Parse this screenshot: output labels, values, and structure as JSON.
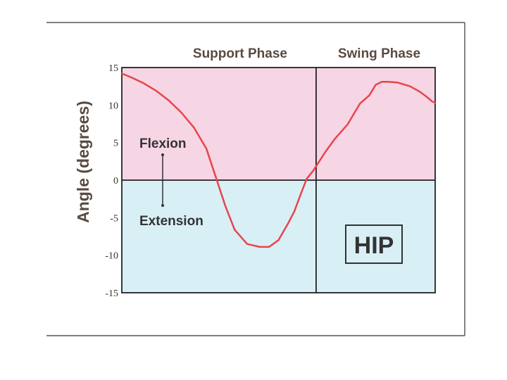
{
  "chart_data": {
    "type": "line",
    "title": "",
    "xlabel": "",
    "ylabel": "Angle (degrees)",
    "ylim": [
      -15,
      15
    ],
    "yticks": [
      "15",
      "10",
      "5",
      "0",
      "-5",
      "-10",
      "-15"
    ],
    "xlim": [
      0,
      100
    ],
    "phase_boundary": 62,
    "phases": [
      "Support Phase",
      "Swing Phase"
    ],
    "regions": [
      {
        "label": "Flexion",
        "range": [
          0,
          15
        ],
        "color": "#f6d5e5"
      },
      {
        "label": "Extension",
        "range": [
          -15,
          0
        ],
        "color": "#d9eff6"
      }
    ],
    "box_label": "HIP",
    "line_color": "#e8454a",
    "grid": false,
    "series": [
      {
        "x": [
          0,
          3,
          7,
          11,
          15,
          19,
          23,
          27,
          30,
          33,
          36,
          40,
          44,
          47,
          50,
          53,
          55,
          57,
          59,
          61,
          63,
          65,
          68,
          72,
          76,
          79,
          81,
          83,
          85,
          88,
          92,
          95,
          97,
          99,
          100
        ],
        "values": [
          14.2,
          13.7,
          12.9,
          11.9,
          10.6,
          9,
          7,
          4.2,
          0.4,
          -3.4,
          -6.6,
          -8.5,
          -8.9,
          -8.9,
          -8,
          -5.8,
          -4.2,
          -2,
          0.2,
          1.2,
          2.5,
          3.8,
          5.5,
          7.4,
          10.2,
          11.3,
          12.7,
          13.1,
          13.1,
          13,
          12.5,
          11.8,
          11.2,
          10.5,
          10.3
        ]
      }
    ]
  }
}
